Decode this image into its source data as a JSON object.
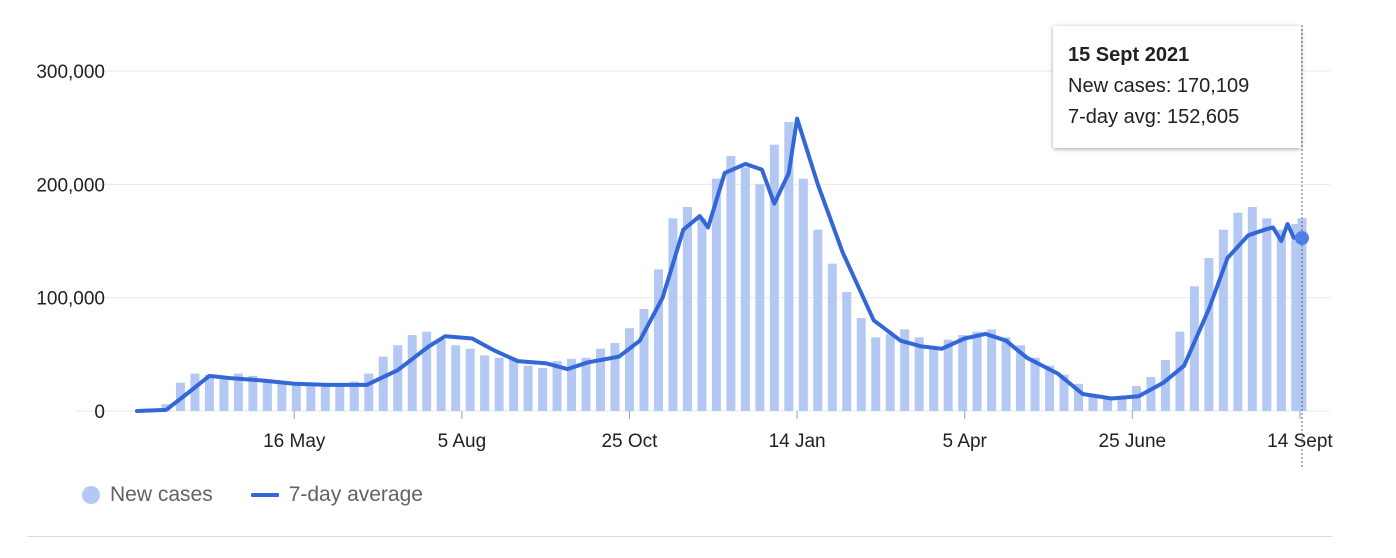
{
  "chart_data": {
    "type": "bar",
    "title": "",
    "xlabel": "",
    "ylabel": "",
    "ylim": [
      0,
      300000
    ],
    "y_ticks": [
      "300,000",
      "200,000",
      "100,000",
      "0"
    ],
    "y_tick_values": [
      300000,
      200000,
      100000,
      0
    ],
    "x_tick_labels": [
      "16 May",
      "5 Aug",
      "25 Oct",
      "14 Jan",
      "5 Apr",
      "25 June",
      "14 Sept"
    ],
    "x_tick_dates": [
      "2020-05-16",
      "2020-08-05",
      "2020-10-25",
      "2021-01-14",
      "2021-04-05",
      "2021-06-25",
      "2021-09-14"
    ],
    "x_range": [
      "2020-03-01",
      "2021-09-15"
    ],
    "grid": true,
    "legend_position": "bottom-left",
    "series": [
      {
        "name": "New cases",
        "kind": "bar",
        "color": "#b3c9f3",
        "x": [
          "2020-03-01",
          "2020-03-08",
          "2020-03-15",
          "2020-03-22",
          "2020-03-29",
          "2020-04-05",
          "2020-04-12",
          "2020-04-19",
          "2020-04-26",
          "2020-05-03",
          "2020-05-10",
          "2020-05-17",
          "2020-05-24",
          "2020-05-31",
          "2020-06-07",
          "2020-06-14",
          "2020-06-21",
          "2020-06-28",
          "2020-07-05",
          "2020-07-12",
          "2020-07-19",
          "2020-07-26",
          "2020-08-02",
          "2020-08-09",
          "2020-08-16",
          "2020-08-23",
          "2020-08-30",
          "2020-09-06",
          "2020-09-13",
          "2020-09-20",
          "2020-09-27",
          "2020-10-04",
          "2020-10-11",
          "2020-10-18",
          "2020-10-25",
          "2020-11-01",
          "2020-11-08",
          "2020-11-15",
          "2020-11-22",
          "2020-11-29",
          "2020-12-06",
          "2020-12-13",
          "2020-12-20",
          "2020-12-27",
          "2021-01-03",
          "2021-01-10",
          "2021-01-17",
          "2021-01-24",
          "2021-01-31",
          "2021-02-07",
          "2021-02-14",
          "2021-02-21",
          "2021-02-28",
          "2021-03-07",
          "2021-03-14",
          "2021-03-21",
          "2021-03-28",
          "2021-04-04",
          "2021-04-11",
          "2021-04-18",
          "2021-04-25",
          "2021-05-02",
          "2021-05-09",
          "2021-05-16",
          "2021-05-23",
          "2021-05-30",
          "2021-06-06",
          "2021-06-13",
          "2021-06-20",
          "2021-06-27",
          "2021-07-04",
          "2021-07-11",
          "2021-07-18",
          "2021-07-25",
          "2021-08-01",
          "2021-08-08",
          "2021-08-15",
          "2021-08-22",
          "2021-08-29",
          "2021-09-05",
          "2021-09-12",
          "2021-09-15"
        ],
        "values": [
          200,
          1000,
          6000,
          25000,
          33000,
          32000,
          30000,
          33000,
          31000,
          28000,
          25000,
          23000,
          24000,
          22000,
          23000,
          26000,
          33000,
          48000,
          58000,
          67000,
          70000,
          63000,
          58000,
          55000,
          49000,
          47000,
          46000,
          40000,
          38000,
          44000,
          46000,
          47000,
          55000,
          60000,
          73000,
          90000,
          125000,
          170000,
          180000,
          170000,
          205000,
          225000,
          215000,
          200000,
          235000,
          255000,
          205000,
          160000,
          130000,
          105000,
          82000,
          65000,
          68000,
          72000,
          65000,
          56000,
          63000,
          67000,
          70000,
          72000,
          65000,
          58000,
          47000,
          40000,
          32000,
          24000,
          14000,
          11000,
          13000,
          22000,
          30000,
          45000,
          70000,
          110000,
          135000,
          160000,
          175000,
          180000,
          170000,
          160000,
          165000,
          170109
        ]
      },
      {
        "name": "7-day average",
        "kind": "line",
        "color": "#3367d6",
        "x": [
          "2020-03-01",
          "2020-03-15",
          "2020-03-25",
          "2020-04-05",
          "2020-04-15",
          "2020-04-30",
          "2020-05-16",
          "2020-06-01",
          "2020-06-20",
          "2020-07-05",
          "2020-07-20",
          "2020-07-28",
          "2020-08-10",
          "2020-08-20",
          "2020-09-01",
          "2020-09-15",
          "2020-09-25",
          "2020-10-05",
          "2020-10-20",
          "2020-10-30",
          "2020-11-10",
          "2020-11-20",
          "2020-11-28",
          "2020-12-02",
          "2020-12-10",
          "2020-12-20",
          "2020-12-28",
          "2021-01-03",
          "2021-01-10",
          "2021-01-14",
          "2021-01-24",
          "2021-02-05",
          "2021-02-20",
          "2021-03-05",
          "2021-03-15",
          "2021-03-25",
          "2021-04-05",
          "2021-04-15",
          "2021-04-25",
          "2021-05-05",
          "2021-05-20",
          "2021-06-01",
          "2021-06-15",
          "2021-06-28",
          "2021-07-10",
          "2021-07-20",
          "2021-08-01",
          "2021-08-10",
          "2021-08-20",
          "2021-08-28",
          "2021-09-01",
          "2021-09-05",
          "2021-09-08",
          "2021-09-11",
          "2021-09-15"
        ],
        "values": [
          0,
          1000,
          15000,
          31000,
          29000,
          27000,
          24000,
          23000,
          23000,
          36000,
          57000,
          66000,
          64000,
          54000,
          44000,
          42000,
          37000,
          43000,
          48000,
          62000,
          100000,
          160000,
          172000,
          162000,
          210000,
          218000,
          213000,
          183000,
          210000,
          258000,
          200000,
          140000,
          80000,
          62000,
          57000,
          55000,
          64000,
          68000,
          62000,
          47000,
          33000,
          15000,
          11000,
          13000,
          25000,
          40000,
          90000,
          135000,
          155000,
          160000,
          162000,
          150000,
          165000,
          153000,
          152605
        ]
      }
    ]
  },
  "legend": {
    "new_cases_label": "New cases",
    "avg_label": "7-day average"
  },
  "tooltip": {
    "date": "15 Sept 2021",
    "new_cases_text": "New cases: 170,109",
    "avg_text": "7-day avg: 152,605"
  },
  "colors": {
    "bar": "#b3c9f3",
    "line": "#3367d6",
    "grid": "#e8eaed",
    "text": "#202124",
    "legend_text": "#5f6368"
  }
}
